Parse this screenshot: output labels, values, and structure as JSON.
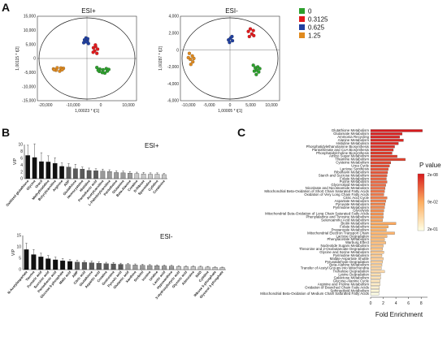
{
  "panels": {
    "a": "A",
    "b": "B",
    "c": "C"
  },
  "chart_data": [
    {
      "type": "scatter",
      "title": "ESI+",
      "xlabel": "1,00023 * t[1]",
      "ylabel": "1,00115 * t[2]",
      "xlim": [
        -20000,
        20000
      ],
      "ylim": [
        -15000,
        15000
      ],
      "xticks": [
        "-20,000",
        "-10,000",
        "0",
        "10,000"
      ],
      "yticks": [
        "15,000",
        "10,000",
        "5,000",
        "0",
        "-5,000",
        "-10,000",
        "-15,000"
      ],
      "series": [
        {
          "name": "0",
          "color": "#2ca02c",
          "points": [
            [
              4000,
              -3200
            ],
            [
              5200,
              -3800
            ],
            [
              6500,
              -4000
            ],
            [
              7800,
              -3600
            ],
            [
              8200,
              -4500
            ],
            [
              5000,
              -4600
            ],
            [
              6200,
              -5000
            ],
            [
              7200,
              -5200
            ],
            [
              4500,
              -4200
            ],
            [
              8800,
              -3900
            ]
          ]
        },
        {
          "name": "0.3125",
          "color": "#e41a1c",
          "points": [
            [
              2600,
              3800
            ],
            [
              3500,
              4200
            ],
            [
              4300,
              3300
            ],
            [
              3100,
              2700
            ],
            [
              4000,
              1800
            ],
            [
              2500,
              2200
            ],
            [
              3400,
              4800
            ]
          ]
        },
        {
          "name": "0.625",
          "color": "#1f3fa0",
          "points": [
            [
              -1000,
              6600
            ],
            [
              -400,
              7300
            ],
            [
              200,
              6200
            ],
            [
              -1300,
              5600
            ],
            [
              600,
              5300
            ],
            [
              -200,
              5900
            ],
            [
              300,
              7000
            ]
          ]
        },
        {
          "name": "1.25",
          "color": "#e08a1e",
          "points": [
            [
              -13500,
              -3700
            ],
            [
              -12000,
              -3300
            ],
            [
              -10500,
              -3400
            ],
            [
              -9500,
              -3500
            ],
            [
              -12500,
              -4200
            ],
            [
              -11000,
              -4500
            ],
            [
              -13200,
              -4000
            ],
            [
              -10000,
              -4000
            ]
          ]
        }
      ]
    },
    {
      "type": "scatter",
      "title": "ESI-",
      "xlabel": "1,00005 * t[1]",
      "ylabel": "1,00287 * t[2]",
      "xlim": [
        -10000,
        10000
      ],
      "ylim": [
        -6000,
        4000
      ],
      "xticks": [
        "-10,000",
        "-5,000",
        "0",
        "5,000",
        "10,000"
      ],
      "yticks": [
        "4,000",
        "2,000",
        "0",
        "-2,000",
        "-4,000",
        "-6,000"
      ],
      "series": [
        {
          "name": "0",
          "color": "#2ca02c",
          "points": [
            [
              4700,
              -1800
            ],
            [
              5100,
              -2100
            ],
            [
              5400,
              -2400
            ],
            [
              5800,
              -2600
            ],
            [
              5300,
              -2900
            ],
            [
              4900,
              -2500
            ],
            [
              6000,
              -2200
            ],
            [
              5600,
              -2000
            ]
          ]
        },
        {
          "name": "0.3125",
          "color": "#e41a1c",
          "points": [
            [
              3700,
              2200
            ],
            [
              4100,
              2500
            ],
            [
              4700,
              2300
            ],
            [
              4400,
              1900
            ],
            [
              3900,
              1600
            ],
            [
              4800,
              1700
            ]
          ]
        },
        {
          "name": "0.625",
          "color": "#1f3fa0",
          "points": [
            [
              -300,
              1200
            ],
            [
              100,
              1400
            ],
            [
              500,
              1100
            ],
            [
              -100,
              900
            ],
            [
              400,
              1600
            ]
          ]
        },
        {
          "name": "1.25",
          "color": "#e08a1e",
          "points": [
            [
              -8200,
              -400
            ],
            [
              -7600,
              -700
            ],
            [
              -8000,
              -1100
            ],
            [
              -7500,
              -1400
            ],
            [
              -7900,
              -1700
            ],
            [
              -8400,
              -900
            ],
            [
              -7300,
              -1000
            ]
          ]
        }
      ]
    },
    {
      "type": "bar",
      "title": "ESI+",
      "ylabel": "VIP",
      "ylim": [
        0,
        10
      ],
      "yticks": [
        "10",
        "8",
        "6",
        "4",
        "2",
        "0"
      ],
      "categories": [
        "Oxidized glutathione",
        "Glycine",
        "Uracil",
        "Methylhistidine",
        "Butyrylcarnitine",
        "Arginine",
        "ADP",
        "Glutathione",
        "Homocysteine",
        "Histidine",
        "Pantothenic acid",
        "Acetylcarnitine",
        "L-Palmitoylcarnitine",
        "Pantetheine",
        "Glutamine",
        "Beta-Alanine",
        "Creatine",
        "D-Ribose",
        "Spermidine",
        "Cytidine",
        "Creatinine"
      ],
      "values": [
        6.8,
        6.2,
        5.0,
        4.9,
        4.5,
        3.6,
        3.4,
        2.9,
        2.8,
        2.4,
        2.3,
        2.2,
        2.1,
        1.8,
        1.7,
        1.6,
        1.5,
        1.4,
        1.3,
        1.3,
        1.2
      ],
      "errors": [
        3.0,
        4.0,
        2.6,
        1.8,
        1.6,
        1.0,
        1.0,
        1.3,
        0.6,
        0.7,
        0.6,
        0.6,
        0.5,
        0.5,
        0.5,
        0.5,
        0.4,
        0.4,
        0.4,
        0.4,
        0.3
      ]
    },
    {
      "type": "bar",
      "title": "ESI-",
      "ylabel": "VIP",
      "ylim": [
        0,
        15
      ],
      "yticks": [
        "15",
        "10",
        "5",
        "0"
      ],
      "categories": [
        "N-Acetylaspartate",
        "Taurine",
        "Fumaric acid",
        "Succinic acid",
        "Pantothenic acid",
        "Glucose 6-phosphate",
        "Malic acid",
        "AMP",
        "Citric acid",
        "Glutathione",
        "Aspartic acid",
        "Creatine",
        "Guanosine",
        "Pyruvic acid",
        "Glutamic acid",
        "Xanthine",
        "Sorbitol",
        "Inosine",
        "Uridine",
        "Lactic acid",
        "Hypoxanthine",
        "3-Hydroxybutyric acid",
        "Glyceric acid",
        "Adenosine",
        "NAD",
        "Cytidine",
        "Ribose 5-phosphate",
        "Glycerol 3-phosphate"
      ],
      "values": [
        8.8,
        6.6,
        5.6,
        4.8,
        4.3,
        3.9,
        3.6,
        3.3,
        3.2,
        3.0,
        2.8,
        2.6,
        2.5,
        2.3,
        2.2,
        2.0,
        1.9,
        1.8,
        1.7,
        1.6,
        1.5,
        1.4,
        1.3,
        1.3,
        1.2,
        1.1,
        1.0,
        0.9
      ],
      "errors": [
        2.8,
        2.2,
        1.6,
        1.4,
        1.2,
        1.0,
        0.8,
        0.8,
        0.7,
        0.7,
        0.6,
        0.6,
        0.6,
        0.5,
        0.5,
        0.5,
        0.4,
        0.4,
        0.4,
        0.4,
        0.4,
        0.3,
        0.3,
        0.3,
        0.3,
        0.3,
        0.2,
        0.2
      ]
    },
    {
      "type": "bar",
      "orientation": "horizontal",
      "xlabel": "Fold Enrichment",
      "xlim": [
        0,
        9
      ],
      "xticks": [
        "0",
        "2",
        "4",
        "6",
        "8"
      ],
      "legend_title": "P value",
      "legend_ticks": [
        "2e-08",
        "9e-02",
        "2e-01"
      ],
      "colors": {
        "low_p": "#d7191c",
        "mid_p": "#fdae61",
        "high_p": "#ffffbf"
      },
      "categories": [
        "Glutathione Metabolism",
        "Glutamate Metabolism",
        "Ammonia Recycling",
        "Alanine Metabolism",
        "Histidine Metabolism",
        "Phosphatidylethanolamine Biosynthesis",
        "Pantothenate and CoA Biosynthesis",
        "Phosphatidylcholine Biosynthesis",
        "Amino Sugar Metabolism",
        "Thiamine Metabolism",
        "Cysteine Metabolism",
        "Urea Cycle",
        "Lactose Synthesis",
        "Riboflavin Metabolism",
        "Starch and Sucrose Metabolism",
        "Folate Metabolism",
        "Purine Metabolism",
        "Glycerolipid Metabolism",
        "Nicotinate and Nicotinamide Metabolism",
        "Mitochondrial Beta-Oxidation of Short Chain Saturated Fatty Acids",
        "Oxidation of Very Long Chain Fatty Acids",
        "Citric Acid Cycle",
        "Aspartate Metabolism",
        "Pyruvate Metabolism",
        "Pyrimidine Metabolism",
        "Glycolysis",
        "Mitochondrial Beta-Oxidation of Long Chain Saturated Fatty Acids",
        "Phenylalanine and Tyrosine Metabolism",
        "Selenoamino Acid Metabolism",
        "Biotin Metabolism",
        "Folate Metabolism",
        "Propanoate Metabolism",
        "Mitochondrial Electron Transport Chain",
        "Lactose Degradation",
        "Phenylacetate Metabolism",
        "Warburg Effect",
        "Nucleotide Sugars Metabolism",
        "Threonine and 2-Oxobutanoate Degradation",
        "Glycine and Serine Metabolism",
        "Pyrimidine Metabolism",
        "Malate-Aspartate Shuttle",
        "Pyruvaldehyde Degradation",
        "Beta-Alanine Metabolism",
        "Transfer of Acetyl Groups into Mitochondria",
        "Trehalose Degradation",
        "Lysine Degradation",
        "Galactose Metabolism",
        "Glucose-Alanine Cycle",
        "Arginine and Proline Metabolism",
        "Oxidation of Branched Chain Fatty Acids",
        "Sphingolipid Metabolism",
        "Mitochondrial Beta-Oxidation of Medium Chain Saturated Fatty Acids"
      ],
      "values": [
        8.2,
        5.0,
        4.6,
        5.2,
        4.4,
        3.8,
        3.6,
        3.4,
        4.2,
        5.5,
        3.2,
        3.0,
        2.8,
        2.7,
        2.6,
        2.5,
        2.6,
        2.4,
        2.3,
        2.2,
        2.1,
        2.6,
        2.4,
        2.3,
        2.2,
        2.1,
        2.0,
        2.0,
        1.9,
        4.0,
        2.8,
        2.5,
        3.8,
        2.6,
        2.2,
        2.4,
        2.0,
        1.9,
        2.1,
        1.8,
        2.0,
        1.9,
        1.8,
        1.7,
        2.2,
        1.6,
        1.6,
        1.5,
        1.5,
        1.4,
        1.4,
        1.3
      ],
      "pvalue_rank": [
        0.0,
        0.02,
        0.03,
        0.05,
        0.06,
        0.08,
        0.1,
        0.11,
        0.13,
        0.14,
        0.16,
        0.17,
        0.19,
        0.2,
        0.22,
        0.24,
        0.25,
        0.27,
        0.29,
        0.3,
        0.32,
        0.34,
        0.35,
        0.37,
        0.39,
        0.4,
        0.42,
        0.44,
        0.46,
        0.48,
        0.5,
        0.52,
        0.54,
        0.56,
        0.58,
        0.6,
        0.62,
        0.64,
        0.66,
        0.68,
        0.7,
        0.72,
        0.74,
        0.76,
        0.78,
        0.8,
        0.82,
        0.85,
        0.88,
        0.91,
        0.95,
        1.0
      ]
    }
  ]
}
